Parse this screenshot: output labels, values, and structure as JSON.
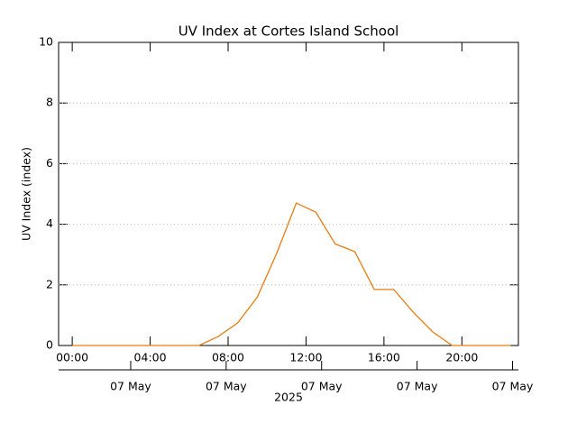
{
  "chart_data": {
    "type": "line",
    "title": "UV Index at Cortes Island School",
    "y_label": "UV Index (index)",
    "x": [
      0,
      6.5,
      7.5,
      8.5,
      9.5,
      10.5,
      11.5,
      12.5,
      13.5,
      14.5,
      15.5,
      16.5,
      17.5,
      18.5,
      19.5,
      22.5
    ],
    "series": [
      {
        "name": "UV Index",
        "color": "#e87d12",
        "values": [
          0,
          0,
          0.3,
          0.75,
          1.6,
          3.05,
          4.7,
          4.4,
          3.35,
          3.1,
          1.85,
          1.85,
          1.1,
          0.45,
          0,
          0
        ]
      }
    ],
    "xlim": [
      -0.7,
      22.9
    ],
    "xticks": [
      {
        "value": 0,
        "label": "00:00"
      },
      {
        "value": 4,
        "label": "04:00"
      },
      {
        "value": 8,
        "label": "08:00"
      },
      {
        "value": 12,
        "label": "12:00"
      },
      {
        "value": 16,
        "label": "16:00"
      },
      {
        "value": 20,
        "label": "20:00"
      }
    ],
    "x2ticks": [
      {
        "value": 3,
        "label": "07 May"
      },
      {
        "value": 7.9,
        "label": "07 May"
      },
      {
        "value": 12.8,
        "label": "07 May"
      },
      {
        "value": 17.7,
        "label": "07 May"
      },
      {
        "value": 22.6,
        "label": "07 May"
      }
    ],
    "x2_label": "2025",
    "ylim": [
      0,
      10
    ],
    "yticks": [
      0,
      2,
      4,
      6,
      8,
      10
    ],
    "grid": true
  }
}
